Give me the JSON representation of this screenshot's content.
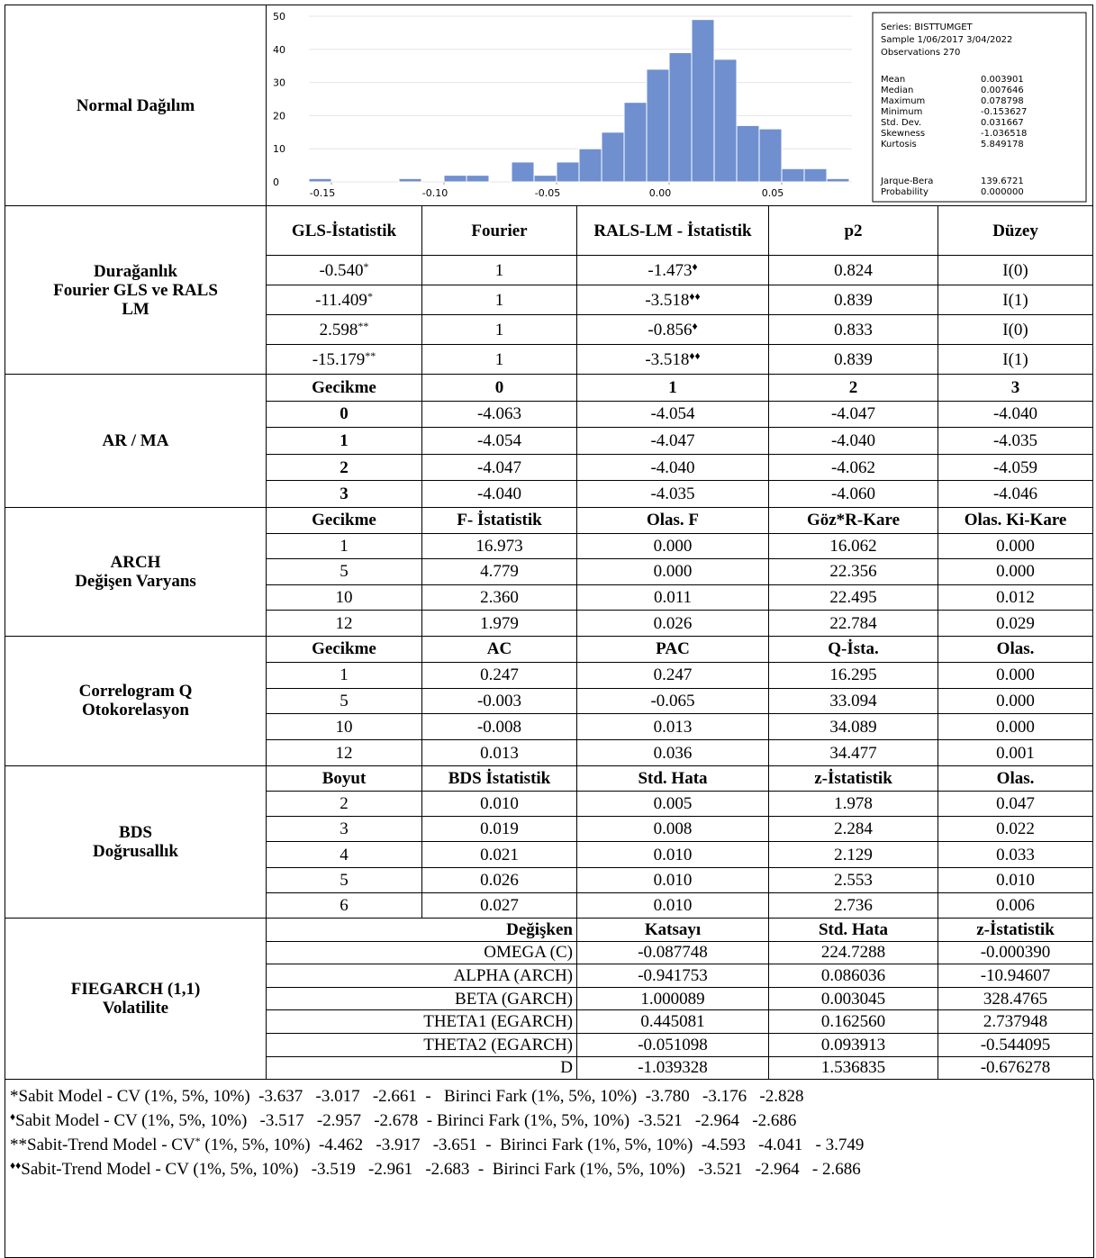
{
  "histogram_label": "Normal Dağılım",
  "chart_data": {
    "type": "histogram",
    "bins": [
      -0.16,
      -0.15,
      -0.14,
      -0.13,
      -0.12,
      -0.11,
      -0.1,
      -0.09,
      -0.08,
      -0.07,
      -0.06,
      -0.05,
      -0.04,
      -0.03,
      -0.02,
      -0.01,
      0.0,
      0.01,
      0.02,
      0.03,
      0.04,
      0.05,
      0.06,
      0.07,
      0.08
    ],
    "counts": [
      1,
      0,
      0,
      0,
      1,
      0,
      2,
      2,
      0,
      6,
      2,
      6,
      10,
      15,
      24,
      34,
      39,
      49,
      37,
      17,
      16,
      4,
      4,
      1
    ],
    "color": "#6f8fcf",
    "xlim": [
      -0.16,
      0.08
    ],
    "xticks": [
      {
        "value": -0.15,
        "label": "-0.15"
      },
      {
        "value": -0.1,
        "label": "-0.10"
      },
      {
        "value": -0.05,
        "label": "-0.05"
      },
      {
        "value": 0,
        "label": "0.00"
      },
      {
        "value": 0.05,
        "label": "0.05"
      }
    ],
    "ylim": [
      0,
      50
    ],
    "yticks": [
      0,
      10,
      20,
      30,
      40,
      50
    ],
    "grid": true,
    "stats_box": {
      "header": [
        "Series: BISTTUMGET",
        "Sample 1/06/2017 3/04/2022",
        "Observations 270"
      ],
      "stats": [
        [
          "Mean",
          "0.003901"
        ],
        [
          "Median",
          "0.007646"
        ],
        [
          "Maximum",
          "0.078798"
        ],
        [
          "Minimum",
          "-0.153627"
        ],
        [
          "Std. Dev.",
          "0.031667"
        ],
        [
          "Skewness",
          "-1.036518"
        ],
        [
          "Kurtosis",
          "5.849178"
        ]
      ],
      "tests": [
        [
          "Jarque-Bera",
          "139.6721"
        ],
        [
          "Probability",
          "0.000000"
        ]
      ]
    }
  },
  "table": {
    "sections": [
      {
        "label": [
          "Durağanlık",
          "Fourier GLS ve RALS",
          "LM"
        ],
        "header": [
          "GLS-İstatistik",
          "Fourier",
          "RALS-LM - İstatistik",
          "p2",
          "Düzey"
        ],
        "rows": [
          [
            {
              "text": "-0.540",
              "sup": "*"
            },
            "1",
            {
              "text": "-1.473",
              "sup": "♦"
            },
            "0.824",
            "I(0)"
          ],
          [
            {
              "text": "-11.409",
              "sup": "*"
            },
            "1",
            {
              "text": "-3.518",
              "sup": "♦♦"
            },
            "0.839",
            "I(1)"
          ],
          [
            {
              "text": "2.598",
              "sup": "**"
            },
            "1",
            {
              "text": "-0.856",
              "sup": "♦"
            },
            "0.833",
            "I(0)"
          ],
          [
            {
              "text": "-15.179",
              "sup": "**"
            },
            "1",
            {
              "text": "-3.518",
              "sup": "♦♦"
            },
            "0.839",
            "I(1)"
          ]
        ]
      },
      {
        "label": [
          "AR / MA"
        ],
        "header": [
          "Gecikme",
          "0",
          "1",
          "2",
          "3"
        ],
        "rows": [
          [
            "0",
            "-4.063",
            "-4.054",
            "-4.047",
            "-4.040"
          ],
          [
            "1",
            "-4.054",
            "-4.047",
            "-4.040",
            "-4.035"
          ],
          [
            "2",
            "-4.047",
            "-4.040",
            "-4.062",
            "-4.059"
          ],
          [
            "3",
            "-4.040",
            "-4.035",
            "-4.060",
            "-4.046"
          ]
        ]
      },
      {
        "label": [
          "ARCH",
          "Değişen Varyans"
        ],
        "header": [
          "Gecikme",
          "F- İstatistik",
          "Olas. F",
          "Göz*R-Kare",
          "Olas. Ki-Kare"
        ],
        "rows": [
          [
            "1",
            "16.973",
            "0.000",
            "16.062",
            "0.000"
          ],
          [
            "5",
            "4.779",
            "0.000",
            "22.356",
            "0.000"
          ],
          [
            "10",
            "2.360",
            "0.011",
            "22.495",
            "0.012"
          ],
          [
            "12",
            "1.979",
            "0.026",
            "22.784",
            "0.029"
          ]
        ]
      },
      {
        "label": [
          "Correlogram Q",
          "Otokorelasyon"
        ],
        "header": [
          "Gecikme",
          "AC",
          "PAC",
          "Q-İsta.",
          "Olas."
        ],
        "rows": [
          [
            "1",
            "0.247",
            "0.247",
            "16.295",
            "0.000"
          ],
          [
            "5",
            "-0.003",
            "-0.065",
            "33.094",
            "0.000"
          ],
          [
            "10",
            "-0.008",
            "0.013",
            "34.089",
            "0.000"
          ],
          [
            "12",
            "0.013",
            "0.036",
            "34.477",
            "0.001"
          ]
        ]
      },
      {
        "label": [
          "BDS",
          "Doğrusallık"
        ],
        "header": [
          "Boyut",
          "BDS İstatistik",
          "Std. Hata",
          "z-İstatistik",
          "Olas."
        ],
        "rows": [
          [
            "2",
            "0.010",
            "0.005",
            "1.978",
            "0.047"
          ],
          [
            "3",
            "0.019",
            "0.008",
            "2.284",
            "0.022"
          ],
          [
            "4",
            "0.021",
            "0.010",
            "2.129",
            "0.033"
          ],
          [
            "5",
            "0.026",
            "0.010",
            "2.553",
            "0.010"
          ],
          [
            "6",
            "0.027",
            "0.010",
            "2.736",
            "0.006"
          ]
        ]
      },
      {
        "label": [
          "FIEGARCH (1,1)",
          "Volatilite"
        ],
        "header": [
          "Değişken",
          "Katsayı",
          "Std. Hata",
          "z-İstatistik"
        ],
        "rows": [
          [
            "OMEGA (C)",
            "-0.087748",
            "224.7288",
            "-0.000390"
          ],
          [
            "ALPHA (ARCH)",
            "-0.941753",
            "0.086036",
            "-10.94607"
          ],
          [
            "BETA (GARCH)",
            "1.000089",
            "0.003045",
            "328.4765"
          ],
          [
            "THETA1 (EGARCH)",
            "0.445081",
            "0.162560",
            "2.737948"
          ],
          [
            "THETA2 (EGARCH)",
            "-0.051098",
            "0.093913",
            "-0.544095"
          ],
          [
            "D",
            "-1.039328",
            "1.536835",
            "-0.676278"
          ]
        ]
      }
    ]
  },
  "footnotes": [
    [
      "*Sabit Model - CV (1%, 5%, 10%)  -3.637   -3.017   -2.661  -   Birinci Fark (1%, 5%, 10%)  -3.780   -3.176   -2.828"
    ],
    [
      "",
      "♦",
      "Sabit Model - CV (1%, 5%, 10%)   -3.517   -2.957   -2.678  - Birinci Fark (1%, 5%, 10%)  -3.521   -2.964   -2.686"
    ],
    [
      "**Sabit-Trend Model - CV",
      "*",
      " (1%, 5%, 10%)  -4.462   -3.917   -3.651  -  Birinci Fark (1%, 5%, 10%)  -4.593   -4.041   - 3.749"
    ],
    [
      "",
      "♦♦",
      "Sabit-Trend Model - CV (1%, 5%, 10%)   -3.519   -2.961   -2.683  -  Birinci Fark (1%, 5%, 10%)   -3.521   -2.964   - 2.686"
    ]
  ]
}
